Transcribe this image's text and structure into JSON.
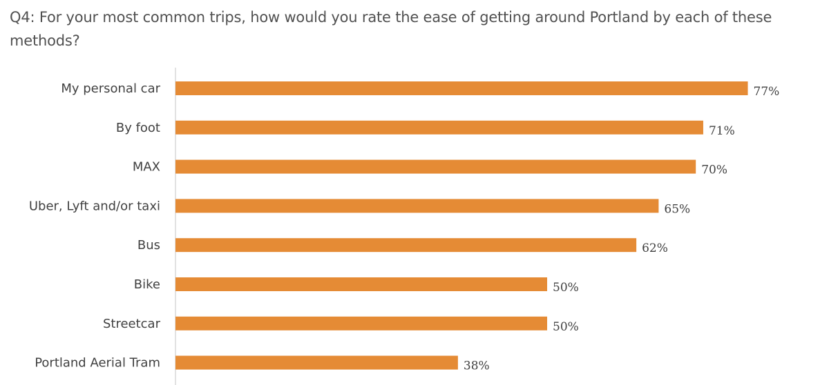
{
  "question": "Q4: For your most common trips, how would you rate the ease of getting around Portland by each of these methods?",
  "chart_data": {
    "type": "bar",
    "orientation": "horizontal",
    "categories": [
      "My personal car",
      "By foot",
      "MAX",
      "Uber, Lyft and/or taxi",
      "Bus",
      "Bike",
      "Streetcar",
      "Portland Aerial Tram"
    ],
    "values": [
      77,
      71,
      70,
      65,
      62,
      50,
      50,
      38
    ],
    "value_labels": [
      "77%",
      "71%",
      "70%",
      "65%",
      "62%",
      "50%",
      "50%",
      "38%"
    ],
    "unit": "%",
    "bar_color": "#E58B35",
    "axis_color": "#D9D9D9",
    "grid": false,
    "legend": "none"
  }
}
